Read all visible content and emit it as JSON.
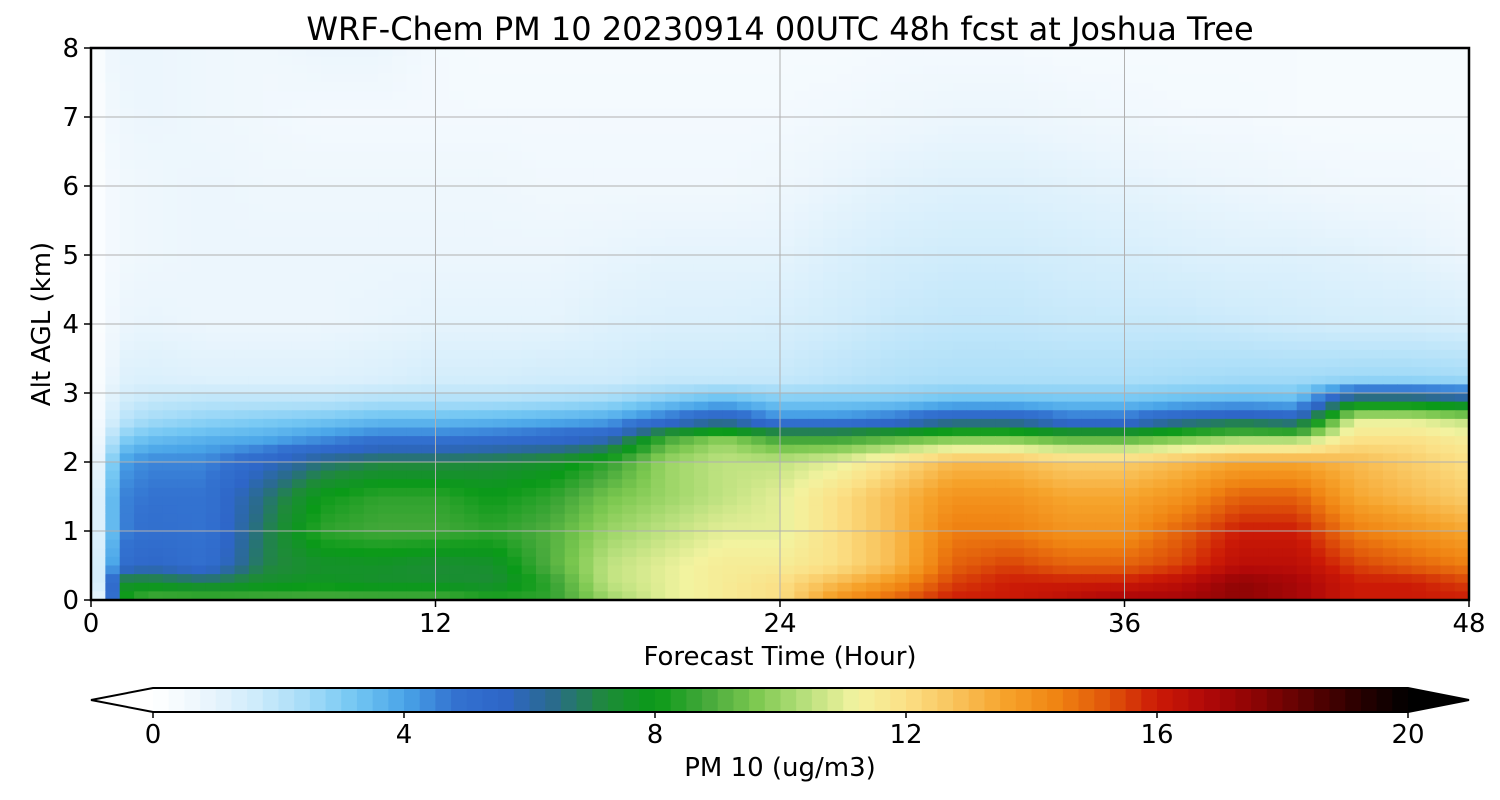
{
  "chart_data": {
    "type": "heatmap",
    "title": "WRF-Chem PM 10  20230914 00UTC 48h fcst at Joshua Tree",
    "xlabel": "Forecast Time (Hour)",
    "ylabel": "Alt AGL (km)",
    "xlim": [
      0,
      48
    ],
    "ylim": [
      0,
      8
    ],
    "xticks": [
      0,
      12,
      24,
      36,
      48
    ],
    "yticks": [
      0,
      1,
      2,
      3,
      4,
      5,
      6,
      7,
      8
    ],
    "grid": true,
    "colorbar": {
      "label": "PM 10  (ug/m3)",
      "min": 0,
      "max": 20,
      "ticks": [
        0,
        4,
        8,
        12,
        16,
        20
      ],
      "extend": "both",
      "colors": [
        "#ffffff",
        "#ecf6fd",
        "#d0ecfb",
        "#a8ddf8",
        "#74c7f3",
        "#4aa5e8",
        "#3372d0",
        "#2e66c8",
        "#2a6b8a",
        "#1f8a3a",
        "#0a9a18",
        "#44a83a",
        "#7cc850",
        "#b8e07c",
        "#f3f3a0",
        "#fbe086",
        "#f9c25a",
        "#f6a22a",
        "#f08412",
        "#e0560a",
        "#cc1a06",
        "#b00808",
        "#8a0404",
        "#5a0202",
        "#2a0000",
        "#000000"
      ]
    },
    "y": [
      0,
      0.25,
      0.5,
      1,
      1.5,
      2,
      2.3,
      2.6,
      2.9,
      3.2,
      4,
      5,
      6,
      7,
      8
    ],
    "x": [
      0,
      0.5,
      1,
      2,
      4,
      6,
      8,
      10,
      12,
      14,
      16,
      18,
      20,
      22,
      24,
      26,
      28,
      30,
      32,
      34,
      36,
      38,
      40,
      42,
      44,
      46,
      48
    ],
    "z": [
      [
        0,
        2,
        8,
        9,
        9,
        9,
        9,
        9,
        9,
        8.5,
        8.5,
        10,
        11,
        11.5,
        12,
        14,
        15,
        16,
        16,
        16.5,
        17,
        17,
        17.5,
        17,
        16,
        16,
        16
      ],
      [
        0,
        3,
        7.5,
        7.5,
        7,
        7.5,
        7.8,
        7.5,
        7.5,
        7.3,
        8.5,
        10.5,
        11,
        11.5,
        12,
        13,
        14,
        15.5,
        16,
        16,
        16,
        16.5,
        17.5,
        17,
        16,
        16,
        15.5
      ],
      [
        0,
        3,
        5,
        5.5,
        5,
        7,
        7.5,
        7.6,
        7.3,
        7.5,
        9,
        10.5,
        11,
        11.5,
        11.5,
        12,
        13,
        15,
        15.5,
        15,
        15,
        15.5,
        16.5,
        16.5,
        15.5,
        15,
        14.5
      ],
      [
        0,
        2.5,
        4.5,
        5,
        4.8,
        6.8,
        8.5,
        8.8,
        8.8,
        8.5,
        9,
        10,
        10.5,
        11,
        11,
        12,
        13,
        14.5,
        14.5,
        14,
        14,
        15,
        16,
        16,
        14.5,
        14,
        13.5
      ],
      [
        0,
        2.5,
        4.5,
        4.8,
        4.8,
        6.5,
        8,
        8.5,
        8.5,
        8,
        8.5,
        9.5,
        10,
        10.5,
        11,
        12,
        13,
        14,
        14,
        13.5,
        13.5,
        14,
        15,
        15,
        13.5,
        13,
        12.5
      ],
      [
        0,
        2,
        4,
        4.5,
        4.5,
        5.5,
        6.5,
        7,
        7,
        7.2,
        7.5,
        8.5,
        10,
        10.5,
        10.5,
        11,
        12,
        13,
        13,
        12.5,
        12.5,
        13,
        13.5,
        13.5,
        13,
        12.5,
        12
      ],
      [
        0,
        1.5,
        3,
        3.5,
        3.8,
        4,
        4.5,
        5,
        5,
        5.2,
        5.5,
        6,
        9,
        10,
        9,
        9,
        9.5,
        10,
        10,
        9.5,
        9.5,
        10,
        10.5,
        10.5,
        12,
        12,
        11.5
      ],
      [
        0,
        1,
        2,
        2.5,
        2.8,
        3,
        3.2,
        3.5,
        3.5,
        3.6,
        3.8,
        4,
        5,
        6,
        4.5,
        4.5,
        5,
        6,
        6,
        5,
        5,
        6,
        6.5,
        6,
        11,
        11,
        10.5
      ],
      [
        0,
        0.8,
        1.5,
        1.8,
        2,
        2,
        2,
        2.2,
        2.2,
        2.2,
        2.3,
        2.5,
        3,
        3.5,
        3,
        3,
        3,
        3.3,
        3.3,
        3.2,
        3.2,
        3.4,
        3.5,
        3.4,
        7,
        7,
        6.5
      ],
      [
        0,
        0.6,
        1.2,
        1.3,
        1.2,
        1.2,
        1.2,
        1.3,
        1.5,
        1.5,
        1.6,
        1.6,
        1.8,
        1.8,
        1.8,
        2,
        2.2,
        2.3,
        2.3,
        2.3,
        2.3,
        2.4,
        2.5,
        2.5,
        2.6,
        2.6,
        2.5
      ],
      [
        0,
        0.4,
        0.8,
        0.9,
        0.8,
        0.8,
        0.8,
        0.9,
        1,
        1,
        1,
        1.2,
        1.3,
        1.3,
        1.4,
        1.6,
        1.8,
        1.9,
        1.9,
        1.8,
        1.8,
        1.8,
        1.7,
        1.6,
        1.5,
        1.5,
        1.4
      ],
      [
        0,
        0.4,
        0.6,
        0.7,
        0.8,
        0.8,
        0.8,
        0.8,
        0.8,
        0.8,
        0.8,
        0.9,
        1,
        1,
        1,
        1.3,
        1.5,
        1.6,
        1.6,
        1.5,
        1.4,
        1.3,
        1.2,
        1.2,
        1.1,
        1,
        0.8
      ],
      [
        0,
        0.4,
        0.6,
        0.7,
        0.8,
        0.7,
        0.7,
        0.7,
        0.7,
        0.7,
        0.6,
        0.6,
        0.6,
        0.6,
        0.7,
        0.9,
        1.1,
        1.2,
        1.2,
        1.1,
        1,
        0.9,
        0.8,
        0.7,
        0.6,
        0.6,
        0.5
      ],
      [
        0,
        0.5,
        0.7,
        0.8,
        0.7,
        0.6,
        0.5,
        0.5,
        0.5,
        0.5,
        0.5,
        0.5,
        0.5,
        0.5,
        0.5,
        0.6,
        0.7,
        0.8,
        0.8,
        0.7,
        0.6,
        0.5,
        0.5,
        0.4,
        0.4,
        0.4,
        0.4
      ],
      [
        0,
        0.6,
        0.8,
        0.8,
        0.7,
        0.6,
        0.8,
        0.8,
        0.5,
        0.4,
        0.4,
        0.4,
        0.4,
        0.4,
        0.4,
        0.4,
        0.5,
        0.5,
        0.5,
        0.4,
        0.4,
        0.4,
        0.4,
        0.4,
        0.4,
        0.4,
        0.4
      ]
    ]
  }
}
